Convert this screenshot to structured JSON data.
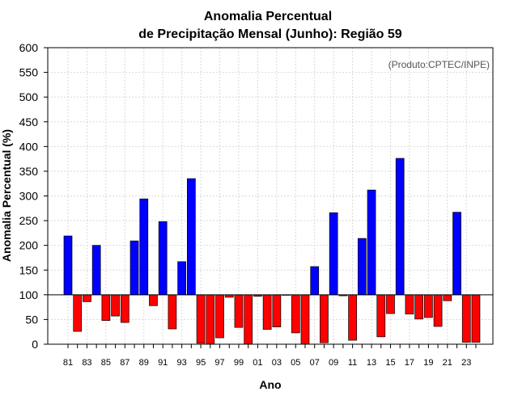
{
  "chart_data": {
    "type": "bar",
    "title_line1": "Anomalia Percentual",
    "title_line2": "de Precipitação Mensal (Junho): Região 59",
    "xlabel": "Ano",
    "ylabel": "Anomalia Percentual (%)",
    "credit": "(Produto:CPTEC/INPE)",
    "baseline": 100,
    "ylim": [
      0,
      600
    ],
    "yticks": [
      0,
      50,
      100,
      150,
      200,
      250,
      300,
      350,
      400,
      450,
      500,
      550,
      600
    ],
    "xtick_labels": [
      "81",
      "83",
      "85",
      "87",
      "89",
      "91",
      "93",
      "95",
      "97",
      "99",
      "01",
      "03",
      "05",
      "07",
      "09",
      "11",
      "13",
      "15",
      "17",
      "19",
      "21",
      "23"
    ],
    "colors": {
      "above": "#0000ff",
      "below": "#ff0000",
      "grid": "#d9d9d9"
    },
    "categories": [
      "1981",
      "1982",
      "1983",
      "1984",
      "1985",
      "1986",
      "1987",
      "1988",
      "1989",
      "1990",
      "1991",
      "1992",
      "1993",
      "1994",
      "1995",
      "1996",
      "1997",
      "1998",
      "1999",
      "2000",
      "2001",
      "2002",
      "2003",
      "2004",
      "2005",
      "2006",
      "2007",
      "2008",
      "2009",
      "2010",
      "2011",
      "2012",
      "2013",
      "2014",
      "2015",
      "2016",
      "2017",
      "2018",
      "2019",
      "2020",
      "2021",
      "2022",
      "2023",
      "2024"
    ],
    "values": [
      219,
      26,
      86,
      200,
      48,
      57,
      44,
      209,
      294,
      78,
      248,
      31,
      167,
      335,
      2,
      0,
      13,
      95,
      34,
      0,
      97,
      30,
      35,
      99,
      23,
      0,
      157,
      3,
      266,
      98,
      8,
      214,
      312,
      15,
      62,
      376,
      61,
      51,
      54,
      36,
      88,
      267,
      4,
      4
    ]
  }
}
